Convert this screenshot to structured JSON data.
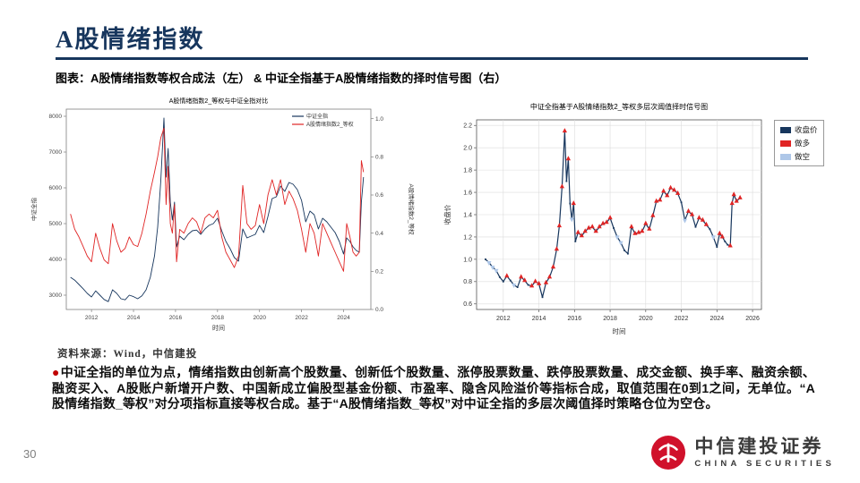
{
  "slide": {
    "title": "A股情绪指数",
    "caption": "图表：A股情绪指数等权合成法（左） & 中证全指基于A股情绪指数的择时信号图（右）",
    "source": "资料来源：Wind，中信建投",
    "page_number": "30",
    "accent_color": "#17365d"
  },
  "body": {
    "bullet": "●",
    "text": "中证全指的单位为点，情绪指数由创新高个股数量、创新低个股数量、涨停股票数量、跌停股票数量、成交金额、换手率、融资余额、融资买入、A股账户新增开户数、中国新成立偏股型基金份额、市盈率、隐含风险溢价等指标合成，取值范围在0到1之间，无单位。“A股情绪指数_等权”对分项指标直接等权合成。基于“A股情绪指数_等权”对中证全指的多层次阈值择时策略仓位为空仓。"
  },
  "logo": {
    "name_cn": "中信建投证券",
    "name_en": "CHINA SECURITIES",
    "emblem_color": "#d0112b"
  },
  "chart_data": [
    {
      "type": "line",
      "title": "A股情绪指数2_等权与中证全指对比",
      "xlabel": "时间",
      "ylabel_left": "中证全指",
      "ylabel_right": "A股情绪指数2_等权",
      "xlim": [
        2010.8,
        2025.3
      ],
      "ylim_left": [
        2600,
        8200
      ],
      "ylim_right": [
        0,
        1.05
      ],
      "xticks": [
        2012,
        2014,
        2016,
        2018,
        2020,
        2022,
        2024
      ],
      "yticks_left": [
        3000,
        4000,
        5000,
        6000,
        7000,
        8000
      ],
      "yticks_right": [
        0.0,
        0.2,
        0.4,
        0.6,
        0.8,
        1.0
      ],
      "x": [
        2011.0,
        2011.2,
        2011.4,
        2011.6,
        2011.8,
        2012.0,
        2012.2,
        2012.4,
        2012.6,
        2012.8,
        2013.0,
        2013.2,
        2013.4,
        2013.6,
        2013.8,
        2014.0,
        2014.2,
        2014.4,
        2014.6,
        2014.8,
        2015.0,
        2015.15,
        2015.3,
        2015.45,
        2015.55,
        2015.65,
        2015.75,
        2015.85,
        2015.95,
        2016.05,
        2016.2,
        2016.4,
        2016.6,
        2016.8,
        2017.0,
        2017.2,
        2017.4,
        2017.6,
        2017.8,
        2018.0,
        2018.2,
        2018.4,
        2018.6,
        2018.8,
        2019.0,
        2019.2,
        2019.4,
        2019.6,
        2019.8,
        2020.0,
        2020.2,
        2020.4,
        2020.6,
        2020.8,
        2021.0,
        2021.2,
        2021.4,
        2021.6,
        2021.8,
        2022.0,
        2022.2,
        2022.4,
        2022.6,
        2022.8,
        2023.0,
        2023.2,
        2023.4,
        2023.6,
        2023.8,
        2024.0,
        2024.15,
        2024.3,
        2024.45,
        2024.6,
        2024.75,
        2024.85,
        2024.95
      ],
      "series": [
        {
          "name": "中证全指",
          "color": "#17365d",
          "axis": "left",
          "y": [
            3500,
            3420,
            3300,
            3180,
            3050,
            2950,
            3120,
            3000,
            2880,
            2820,
            3150,
            3050,
            2900,
            2870,
            3000,
            2960,
            2900,
            2980,
            3150,
            3500,
            4100,
            4900,
            6200,
            7950,
            6300,
            7100,
            5600,
            5100,
            5600,
            4350,
            4650,
            4550,
            4700,
            4800,
            4820,
            4700,
            4850,
            4950,
            5000,
            5150,
            4800,
            4500,
            4300,
            4050,
            3950,
            4850,
            4600,
            4650,
            4700,
            4950,
            4750,
            5200,
            5700,
            5750,
            6050,
            5900,
            6150,
            6100,
            5950,
            5650,
            5050,
            5350,
            5250,
            4850,
            5150,
            5050,
            4900,
            4750,
            4500,
            4150,
            4600,
            4500,
            4350,
            4250,
            4200,
            5600,
            6300
          ]
        },
        {
          "name": "A股情绪指数2_等权",
          "color": "#e02424",
          "axis": "right",
          "y": [
            0.5,
            0.42,
            0.38,
            0.33,
            0.28,
            0.25,
            0.4,
            0.32,
            0.26,
            0.24,
            0.45,
            0.36,
            0.3,
            0.32,
            0.38,
            0.34,
            0.33,
            0.4,
            0.5,
            0.62,
            0.72,
            0.8,
            0.9,
            0.95,
            0.55,
            0.75,
            0.45,
            0.4,
            0.55,
            0.25,
            0.42,
            0.4,
            0.45,
            0.48,
            0.46,
            0.4,
            0.48,
            0.5,
            0.48,
            0.52,
            0.38,
            0.3,
            0.26,
            0.22,
            0.28,
            0.65,
            0.45,
            0.42,
            0.44,
            0.55,
            0.45,
            0.6,
            0.68,
            0.6,
            0.68,
            0.55,
            0.62,
            0.58,
            0.52,
            0.42,
            0.3,
            0.45,
            0.4,
            0.28,
            0.45,
            0.4,
            0.35,
            0.3,
            0.25,
            0.2,
            0.45,
            0.38,
            0.3,
            0.28,
            0.3,
            0.78,
            0.72
          ]
        }
      ]
    },
    {
      "type": "line",
      "title": "中证全指基于A股情绪指数2_等权多层次阈值择时信号图",
      "xlabel": "时间",
      "ylabel": "收盘价",
      "grid": true,
      "xlim": [
        2010.5,
        2026.5
      ],
      "ylim": [
        0.55,
        2.25
      ],
      "xticks": [
        2012,
        2014,
        2016,
        2018,
        2020,
        2022,
        2024,
        2026
      ],
      "yticks": [
        0.6,
        0.8,
        1.0,
        1.2,
        1.4,
        1.6,
        1.8,
        2.0,
        2.2
      ],
      "legend": [
        {
          "label": "收盘价",
          "color": "#17365d",
          "marker": "line"
        },
        {
          "label": "做多",
          "color": "#e02424",
          "marker": "triangle-up"
        },
        {
          "label": "做空",
          "color": "#aec7e8",
          "marker": "triangle-down"
        }
      ],
      "points": [
        [
          2011.0,
          1.0,
          0
        ],
        [
          2011.2,
          0.97,
          -1
        ],
        [
          2011.4,
          0.93,
          -1
        ],
        [
          2011.6,
          0.9,
          -1
        ],
        [
          2011.8,
          0.84,
          0
        ],
        [
          2012.0,
          0.8,
          0
        ],
        [
          2012.2,
          0.85,
          1
        ],
        [
          2012.4,
          0.81,
          0
        ],
        [
          2012.6,
          0.77,
          -1
        ],
        [
          2012.8,
          0.75,
          0
        ],
        [
          2013.0,
          0.84,
          1
        ],
        [
          2013.2,
          0.81,
          1
        ],
        [
          2013.4,
          0.77,
          0
        ],
        [
          2013.6,
          0.76,
          1
        ],
        [
          2013.8,
          0.8,
          1
        ],
        [
          2014.0,
          0.78,
          1
        ],
        [
          2014.2,
          0.66,
          0
        ],
        [
          2014.4,
          0.79,
          1
        ],
        [
          2014.6,
          0.84,
          1
        ],
        [
          2014.8,
          0.93,
          1
        ],
        [
          2015.0,
          1.09,
          1
        ],
        [
          2015.15,
          1.3,
          1
        ],
        [
          2015.3,
          1.65,
          1
        ],
        [
          2015.45,
          2.15,
          1
        ],
        [
          2015.55,
          1.7,
          0
        ],
        [
          2015.65,
          1.9,
          1
        ],
        [
          2015.75,
          1.5,
          0
        ],
        [
          2015.85,
          1.36,
          -1
        ],
        [
          2015.95,
          1.5,
          1
        ],
        [
          2016.05,
          1.16,
          0
        ],
        [
          2016.2,
          1.24,
          1
        ],
        [
          2016.4,
          1.21,
          1
        ],
        [
          2016.6,
          1.25,
          1
        ],
        [
          2016.8,
          1.28,
          1
        ],
        [
          2017.0,
          1.29,
          1
        ],
        [
          2017.2,
          1.25,
          1
        ],
        [
          2017.4,
          1.29,
          1
        ],
        [
          2017.6,
          1.32,
          1
        ],
        [
          2017.8,
          1.33,
          1
        ],
        [
          2018.0,
          1.37,
          1
        ],
        [
          2018.2,
          1.28,
          0
        ],
        [
          2018.4,
          1.2,
          -1
        ],
        [
          2018.6,
          1.15,
          -1
        ],
        [
          2018.8,
          1.08,
          0
        ],
        [
          2019.0,
          1.05,
          0
        ],
        [
          2019.2,
          1.29,
          1
        ],
        [
          2019.4,
          1.23,
          1
        ],
        [
          2019.6,
          1.24,
          1
        ],
        [
          2019.8,
          1.25,
          1
        ],
        [
          2020.0,
          1.32,
          1
        ],
        [
          2020.2,
          1.27,
          1
        ],
        [
          2020.4,
          1.39,
          1
        ],
        [
          2020.6,
          1.52,
          1
        ],
        [
          2020.8,
          1.53,
          1
        ],
        [
          2021.0,
          1.61,
          1
        ],
        [
          2021.2,
          1.57,
          1
        ],
        [
          2021.4,
          1.64,
          1
        ],
        [
          2021.6,
          1.62,
          1
        ],
        [
          2021.8,
          1.59,
          1
        ],
        [
          2022.0,
          1.51,
          0
        ],
        [
          2022.2,
          1.35,
          -1
        ],
        [
          2022.4,
          1.43,
          1
        ],
        [
          2022.6,
          1.4,
          1
        ],
        [
          2022.8,
          1.29,
          0
        ],
        [
          2023.0,
          1.37,
          1
        ],
        [
          2023.2,
          1.35,
          1
        ],
        [
          2023.4,
          1.31,
          1
        ],
        [
          2023.6,
          1.27,
          0
        ],
        [
          2023.8,
          1.2,
          -1
        ],
        [
          2024.0,
          1.11,
          0
        ],
        [
          2024.15,
          1.23,
          1
        ],
        [
          2024.3,
          1.2,
          1
        ],
        [
          2024.45,
          1.16,
          0
        ],
        [
          2024.6,
          1.13,
          0
        ],
        [
          2024.75,
          1.12,
          1
        ],
        [
          2024.85,
          1.5,
          1
        ],
        [
          2024.95,
          1.58,
          1
        ],
        [
          2025.1,
          1.52,
          1
        ],
        [
          2025.3,
          1.55,
          1
        ]
      ]
    }
  ]
}
